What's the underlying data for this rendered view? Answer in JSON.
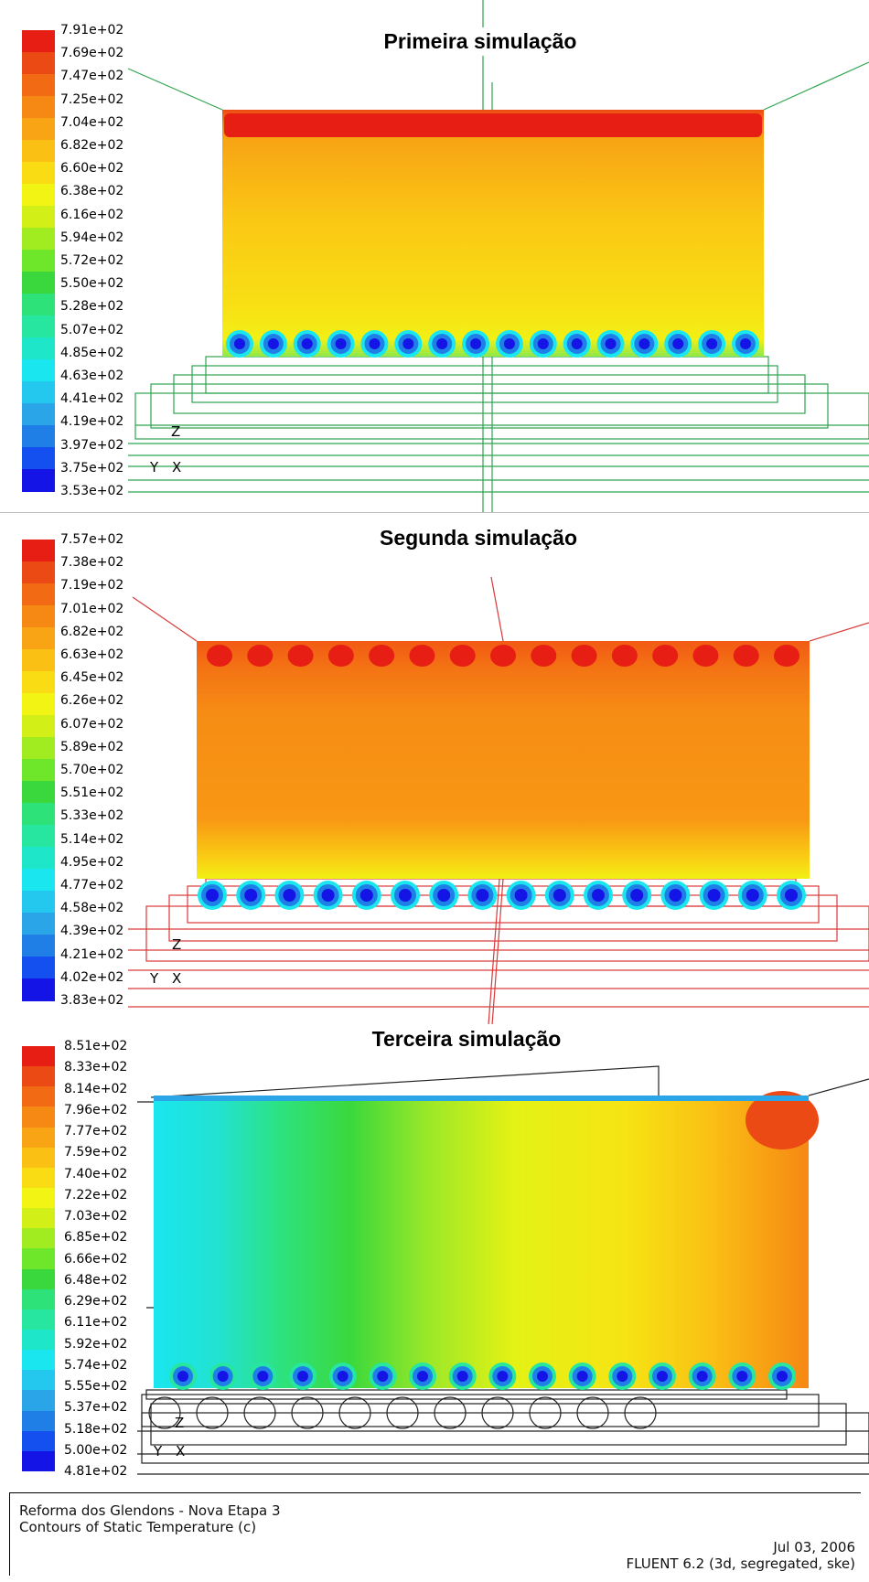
{
  "panels": [
    {
      "title": "Primeira simulação",
      "ticks": [
        "7.91e+02",
        "7.69e+02",
        "7.47e+02",
        "7.25e+02",
        "7.04e+02",
        "6.82e+02",
        "6.60e+02",
        "6.38e+02",
        "6.16e+02",
        "5.94e+02",
        "5.72e+02",
        "5.50e+02",
        "5.28e+02",
        "5.07e+02",
        "4.85e+02",
        "4.63e+02",
        "4.41e+02",
        "4.19e+02",
        "3.97e+02",
        "3.75e+02",
        "3.53e+02"
      ],
      "mesh_color": "#2ea44f",
      "tube_count": 16
    },
    {
      "title": "Segunda simulação",
      "ticks": [
        "7.57e+02",
        "7.38e+02",
        "7.19e+02",
        "7.01e+02",
        "6.82e+02",
        "6.63e+02",
        "6.45e+02",
        "6.26e+02",
        "6.07e+02",
        "5.89e+02",
        "5.70e+02",
        "5.51e+02",
        "5.33e+02",
        "5.14e+02",
        "4.95e+02",
        "4.77e+02",
        "4.58e+02",
        "4.39e+02",
        "4.21e+02",
        "4.02e+02",
        "3.83e+02"
      ],
      "mesh_color": "#d93a3a",
      "tube_count": 16
    },
    {
      "title": "Terceira simulação",
      "ticks": [
        "8.51e+02",
        "8.33e+02",
        "8.14e+02",
        "7.96e+02",
        "7.77e+02",
        "7.59e+02",
        "7.40e+02",
        "7.22e+02",
        "7.03e+02",
        "6.85e+02",
        "6.66e+02",
        "6.48e+02",
        "6.29e+02",
        "6.11e+02",
        "5.92e+02",
        "5.74e+02",
        "5.55e+02",
        "5.37e+02",
        "5.18e+02",
        "5.00e+02",
        "4.81e+02"
      ],
      "mesh_color": "#222222",
      "tube_count": 16
    }
  ],
  "colormap": [
    "#1414e6",
    "#1450f0",
    "#1f7fe6",
    "#2aa5e8",
    "#24c8ee",
    "#1ae6f0",
    "#1ee6c8",
    "#26e6a0",
    "#2ee27a",
    "#3ad83c",
    "#6ee62a",
    "#a0ec20",
    "#d2f018",
    "#f2f514",
    "#fadc14",
    "#fac014",
    "#f8a414",
    "#f68814",
    "#f26a14",
    "#ec4a14",
    "#e61e14"
  ],
  "axis": {
    "z": "Z",
    "y": "Y",
    "x": "X"
  },
  "footer": {
    "project": "Reforma dos Glendons - Nova Etapa 3",
    "description": "Contours of Static Temperature (c)",
    "date": "Jul 03, 2006",
    "software": "FLUENT 6.2 (3d, segregated, ske)"
  }
}
